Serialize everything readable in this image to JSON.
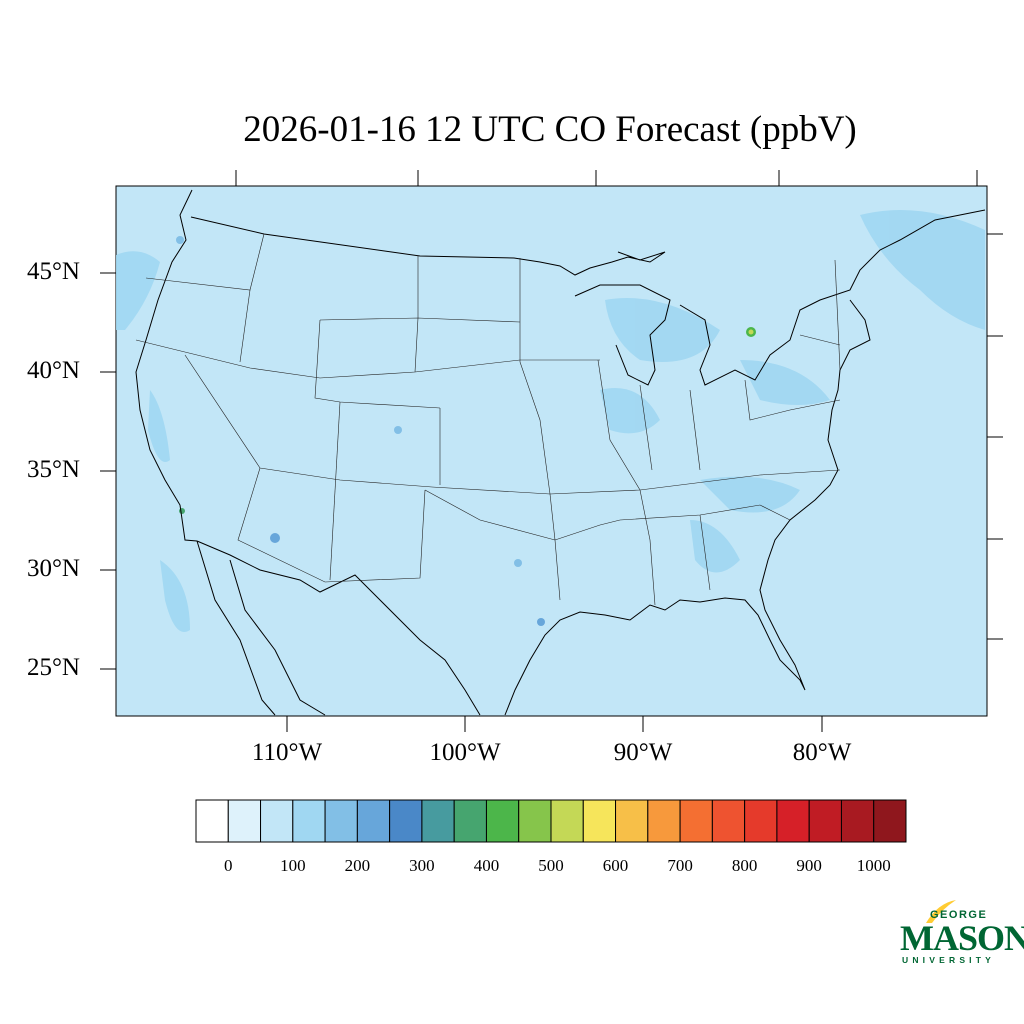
{
  "title": "2026-01-16 12 UTC CO Forecast (ppbV)",
  "map": {
    "background_color": "#c2e6f7",
    "lat_labels": [
      "45°N",
      "40°N",
      "35°N",
      "30°N",
      "25°N"
    ],
    "lon_labels": [
      "110°W",
      "100°W",
      "90°W",
      "80°W"
    ]
  },
  "colorbar": {
    "colors": [
      "#ffffff",
      "#def2fb",
      "#c2e6f7",
      "#a0d7f2",
      "#82bfe6",
      "#67a6da",
      "#4a88c8",
      "#479b9f",
      "#46a56f",
      "#4cb64a",
      "#86c54b",
      "#c4d856",
      "#f6e55b",
      "#f7bf48",
      "#f7993c",
      "#f46f32",
      "#ee5330",
      "#e53a2b",
      "#d62028",
      "#c01c24",
      "#a81a21",
      "#8f171d"
    ],
    "labels": [
      "0",
      "100",
      "200",
      "300",
      "400",
      "500",
      "600",
      "700",
      "800",
      "900",
      "1000"
    ]
  },
  "logo": {
    "line1": "GEORGE",
    "line2": "MASON",
    "line3": "UNIVERSITY"
  }
}
